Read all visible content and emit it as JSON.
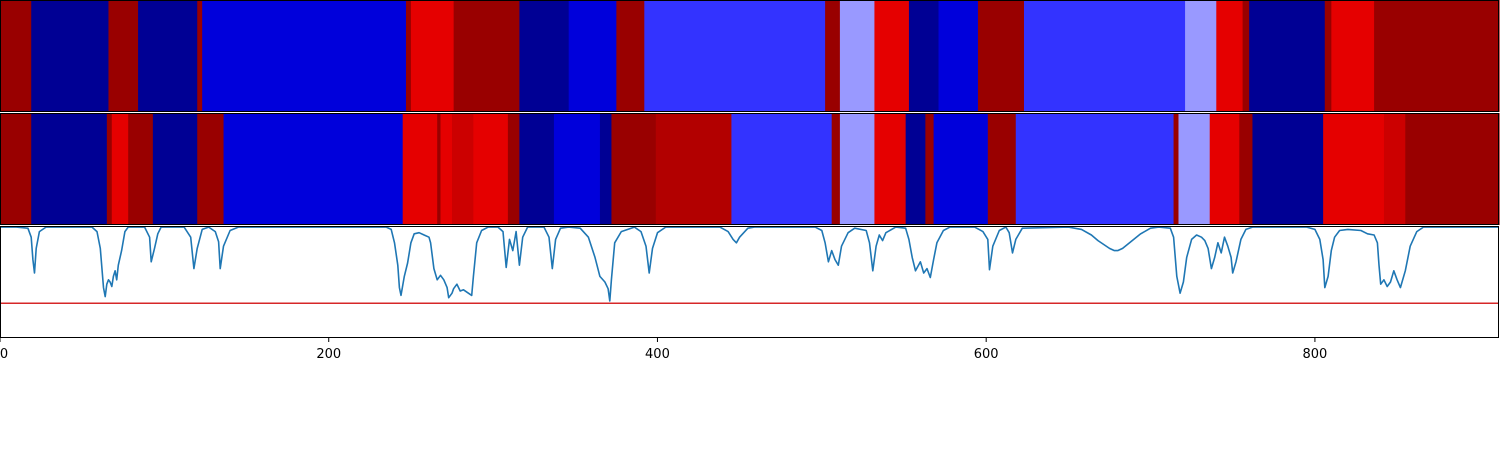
{
  "chart_data": [
    {
      "type": "heatmap",
      "colormap": "seismic",
      "x_range": [
        0,
        912
      ],
      "segments": [
        [
          0,
          19,
          0.95
        ],
        [
          19,
          66,
          0.1
        ],
        [
          66,
          84,
          0.95
        ],
        [
          84,
          120,
          0.1
        ],
        [
          120,
          123,
          0.95
        ],
        [
          123,
          247,
          0.2
        ],
        [
          247,
          250,
          0.95
        ],
        [
          250,
          276,
          0.8
        ],
        [
          276,
          316,
          0.95
        ],
        [
          316,
          346,
          0.1
        ],
        [
          346,
          375,
          0.2
        ],
        [
          375,
          392,
          0.95
        ],
        [
          392,
          502,
          0.3
        ],
        [
          502,
          511,
          0.95
        ],
        [
          511,
          532,
          0.4
        ],
        [
          532,
          553,
          0.8
        ],
        [
          553,
          571,
          0.1
        ],
        [
          571,
          595,
          0.2
        ],
        [
          595,
          623,
          0.95
        ],
        [
          623,
          721,
          0.3
        ],
        [
          721,
          740,
          0.4
        ],
        [
          740,
          756,
          0.8
        ],
        [
          756,
          760,
          0.95
        ],
        [
          760,
          806,
          0.1
        ],
        [
          806,
          810,
          0.95
        ],
        [
          810,
          836,
          0.8
        ],
        [
          836,
          912,
          0.95
        ]
      ]
    },
    {
      "type": "heatmap",
      "colormap": "seismic",
      "x_range": [
        0,
        912
      ],
      "segments": [
        [
          0,
          19,
          0.95
        ],
        [
          19,
          65,
          0.1
        ],
        [
          65,
          68,
          0.95
        ],
        [
          68,
          78,
          0.8
        ],
        [
          78,
          93,
          0.95
        ],
        [
          93,
          120,
          0.1
        ],
        [
          120,
          136,
          0.95
        ],
        [
          136,
          245,
          0.2
        ],
        [
          245,
          266,
          0.8
        ],
        [
          266,
          268,
          0.95
        ],
        [
          268,
          275,
          0.8
        ],
        [
          275,
          288,
          0.85
        ],
        [
          288,
          309,
          0.8
        ],
        [
          309,
          316,
          0.95
        ],
        [
          316,
          337,
          0.1
        ],
        [
          337,
          365,
          0.2
        ],
        [
          365,
          372,
          0.1
        ],
        [
          372,
          399,
          0.95
        ],
        [
          399,
          445,
          0.9
        ],
        [
          445,
          506,
          0.3
        ],
        [
          506,
          511,
          0.95
        ],
        [
          511,
          532,
          0.4
        ],
        [
          532,
          551,
          0.8
        ],
        [
          551,
          563,
          0.1
        ],
        [
          563,
          568,
          0.95
        ],
        [
          568,
          601,
          0.2
        ],
        [
          601,
          618,
          0.95
        ],
        [
          618,
          714,
          0.3
        ],
        [
          714,
          717,
          0.95
        ],
        [
          717,
          736,
          0.4
        ],
        [
          736,
          754,
          0.8
        ],
        [
          754,
          762,
          0.95
        ],
        [
          762,
          805,
          0.1
        ],
        [
          805,
          842,
          0.8
        ],
        [
          842,
          855,
          0.85
        ],
        [
          855,
          912,
          0.95
        ]
      ]
    },
    {
      "type": "line",
      "series": [
        {
          "color": "#1f77b4",
          "points": [
            [
              0,
              0.99
            ],
            [
              10,
              0.99
            ],
            [
              17,
              0.98
            ],
            [
              19,
              0.9
            ],
            [
              20,
              0.7
            ],
            [
              21,
              0.58
            ],
            [
              22,
              0.8
            ],
            [
              24,
              0.95
            ],
            [
              28,
              0.99
            ],
            [
              56,
              0.99
            ],
            [
              59,
              0.95
            ],
            [
              61,
              0.8
            ],
            [
              63,
              0.45
            ],
            [
              64,
              0.37
            ],
            [
              65,
              0.48
            ],
            [
              66,
              0.52
            ],
            [
              67,
              0.5
            ],
            [
              68,
              0.46
            ],
            [
              69,
              0.55
            ],
            [
              70,
              0.6
            ],
            [
              71,
              0.52
            ],
            [
              72,
              0.65
            ],
            [
              74,
              0.78
            ],
            [
              76,
              0.95
            ],
            [
              78,
              0.99
            ],
            [
              88,
              0.99
            ],
            [
              91,
              0.9
            ],
            [
              92,
              0.68
            ],
            [
              94,
              0.8
            ],
            [
              96,
              0.93
            ],
            [
              98,
              0.99
            ],
            [
              112,
              0.99
            ],
            [
              116,
              0.9
            ],
            [
              118,
              0.62
            ],
            [
              120,
              0.8
            ],
            [
              123,
              0.97
            ],
            [
              127,
              0.99
            ],
            [
              131,
              0.95
            ],
            [
              133,
              0.86
            ],
            [
              134,
              0.62
            ],
            [
              136,
              0.82
            ],
            [
              140,
              0.96
            ],
            [
              145,
              0.99
            ],
            [
              235,
              0.99
            ],
            [
              238,
              0.97
            ],
            [
              240,
              0.85
            ],
            [
              242,
              0.65
            ],
            [
              243,
              0.45
            ],
            [
              244,
              0.38
            ],
            [
              246,
              0.55
            ],
            [
              248,
              0.67
            ],
            [
              250,
              0.85
            ],
            [
              252,
              0.93
            ],
            [
              255,
              0.94
            ],
            [
              258,
              0.92
            ],
            [
              261,
              0.9
            ],
            [
              262,
              0.85
            ],
            [
              264,
              0.62
            ],
            [
              266,
              0.52
            ],
            [
              268,
              0.56
            ],
            [
              270,
              0.52
            ],
            [
              272,
              0.45
            ],
            [
              273,
              0.36
            ],
            [
              275,
              0.4
            ],
            [
              276,
              0.44
            ],
            [
              278,
              0.48
            ],
            [
              280,
              0.42
            ],
            [
              282,
              0.43
            ],
            [
              285,
              0.4
            ],
            [
              287,
              0.38
            ],
            [
              288,
              0.55
            ],
            [
              290,
              0.85
            ],
            [
              293,
              0.96
            ],
            [
              297,
              0.99
            ],
            [
              303,
              0.99
            ],
            [
              306,
              0.95
            ],
            [
              308,
              0.63
            ],
            [
              310,
              0.88
            ],
            [
              312,
              0.78
            ],
            [
              314,
              0.95
            ],
            [
              316,
              0.65
            ],
            [
              318,
              0.9
            ],
            [
              321,
              0.99
            ],
            [
              331,
              0.99
            ],
            [
              334,
              0.9
            ],
            [
              336,
              0.62
            ],
            [
              338,
              0.88
            ],
            [
              341,
              0.98
            ],
            [
              346,
              0.99
            ],
            [
              353,
              0.98
            ],
            [
              358,
              0.9
            ],
            [
              362,
              0.72
            ],
            [
              365,
              0.55
            ],
            [
              368,
              0.5
            ],
            [
              370,
              0.44
            ],
            [
              371,
              0.33
            ],
            [
              372,
              0.52
            ],
            [
              374,
              0.85
            ],
            [
              378,
              0.95
            ],
            [
              386,
              0.99
            ],
            [
              390,
              0.95
            ],
            [
              393,
              0.82
            ],
            [
              395,
              0.58
            ],
            [
              397,
              0.8
            ],
            [
              400,
              0.94
            ],
            [
              405,
              0.99
            ],
            [
              438,
              0.99
            ],
            [
              443,
              0.95
            ],
            [
              446,
              0.88
            ],
            [
              448,
              0.85
            ],
            [
              450,
              0.9
            ],
            [
              455,
              0.98
            ],
            [
              459,
              0.99
            ],
            [
              496,
              0.99
            ],
            [
              500,
              0.96
            ],
            [
              502,
              0.85
            ],
            [
              504,
              0.68
            ],
            [
              506,
              0.78
            ],
            [
              508,
              0.7
            ],
            [
              510,
              0.65
            ],
            [
              512,
              0.82
            ],
            [
              516,
              0.94
            ],
            [
              520,
              0.98
            ],
            [
              527,
              0.96
            ],
            [
              529,
              0.85
            ],
            [
              531,
              0.6
            ],
            [
              533,
              0.82
            ],
            [
              535,
              0.92
            ],
            [
              537,
              0.87
            ],
            [
              539,
              0.94
            ],
            [
              545,
              0.99
            ],
            [
              551,
              0.98
            ],
            [
              553,
              0.88
            ],
            [
              555,
              0.72
            ],
            [
              557,
              0.6
            ],
            [
              560,
              0.68
            ],
            [
              562,
              0.58
            ],
            [
              564,
              0.62
            ],
            [
              566,
              0.54
            ],
            [
              568,
              0.7
            ],
            [
              570,
              0.85
            ],
            [
              574,
              0.96
            ],
            [
              578,
              0.99
            ],
            [
              593,
              0.99
            ],
            [
              598,
              0.95
            ],
            [
              601,
              0.88
            ],
            [
              602,
              0.61
            ],
            [
              604,
              0.82
            ],
            [
              608,
              0.96
            ],
            [
              612,
              0.99
            ],
            [
              614,
              0.94
            ],
            [
              616,
              0.76
            ],
            [
              618,
              0.88
            ],
            [
              622,
              0.98
            ],
            [
              650,
              0.99
            ],
            [
              658,
              0.97
            ],
            [
              664,
              0.92
            ],
            [
              668,
              0.87
            ],
            [
              672,
              0.83
            ],
            [
              675,
              0.8
            ],
            [
              678,
              0.78
            ],
            [
              680,
              0.78
            ],
            [
              683,
              0.8
            ],
            [
              688,
              0.86
            ],
            [
              694,
              0.93
            ],
            [
              700,
              0.98
            ],
            [
              705,
              0.99
            ],
            [
              712,
              0.98
            ],
            [
              714,
              0.9
            ],
            [
              716,
              0.55
            ],
            [
              718,
              0.4
            ],
            [
              720,
              0.5
            ],
            [
              722,
              0.72
            ],
            [
              725,
              0.88
            ],
            [
              728,
              0.92
            ],
            [
              731,
              0.9
            ],
            [
              733,
              0.87
            ],
            [
              735,
              0.8
            ],
            [
              737,
              0.62
            ],
            [
              739,
              0.72
            ],
            [
              741,
              0.85
            ],
            [
              743,
              0.76
            ],
            [
              745,
              0.9
            ],
            [
              747,
              0.82
            ],
            [
              749,
              0.72
            ],
            [
              750,
              0.58
            ],
            [
              752,
              0.68
            ],
            [
              755,
              0.88
            ],
            [
              758,
              0.97
            ],
            [
              762,
              0.99
            ],
            [
              795,
              0.99
            ],
            [
              800,
              0.97
            ],
            [
              803,
              0.88
            ],
            [
              805,
              0.7
            ],
            [
              806,
              0.45
            ],
            [
              808,
              0.55
            ],
            [
              810,
              0.78
            ],
            [
              812,
              0.9
            ],
            [
              815,
              0.96
            ],
            [
              820,
              0.97
            ],
            [
              828,
              0.96
            ],
            [
              832,
              0.93
            ],
            [
              836,
              0.92
            ],
            [
              838,
              0.85
            ],
            [
              839,
              0.65
            ],
            [
              840,
              0.48
            ],
            [
              842,
              0.52
            ],
            [
              844,
              0.46
            ],
            [
              846,
              0.5
            ],
            [
              848,
              0.6
            ],
            [
              850,
              0.52
            ],
            [
              852,
              0.45
            ],
            [
              855,
              0.6
            ],
            [
              858,
              0.82
            ],
            [
              862,
              0.95
            ],
            [
              866,
              0.99
            ],
            [
              912,
              0.99
            ]
          ]
        }
      ],
      "hline": {
        "y": 0.31,
        "color": "#d62728"
      },
      "xlim": [
        0,
        912
      ],
      "ylim": [
        0,
        1
      ],
      "x_ticks": [
        0,
        200,
        400,
        600,
        800
      ],
      "x_tick_labels": [
        "0",
        "200",
        "400",
        "600",
        "800"
      ]
    }
  ]
}
